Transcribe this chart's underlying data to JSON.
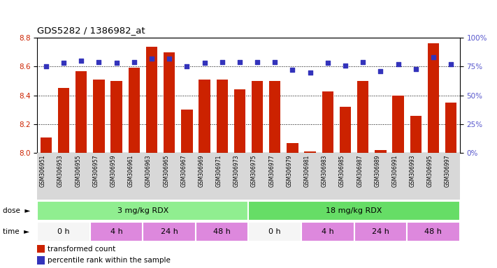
{
  "title": "GDS5282 / 1386982_at",
  "samples": [
    "GSM306951",
    "GSM306953",
    "GSM306955",
    "GSM306957",
    "GSM306959",
    "GSM306961",
    "GSM306963",
    "GSM306965",
    "GSM306967",
    "GSM306969",
    "GSM306971",
    "GSM306973",
    "GSM306975",
    "GSM306977",
    "GSM306979",
    "GSM306981",
    "GSM306983",
    "GSM306985",
    "GSM306987",
    "GSM306989",
    "GSM306991",
    "GSM306993",
    "GSM306995",
    "GSM306997"
  ],
  "bar_values": [
    8.11,
    8.45,
    8.57,
    8.51,
    8.5,
    8.59,
    8.74,
    8.7,
    8.3,
    8.51,
    8.51,
    8.44,
    8.5,
    8.5,
    8.07,
    8.01,
    8.43,
    8.32,
    8.5,
    8.02,
    8.4,
    8.26,
    8.76,
    8.35
  ],
  "percentile_values": [
    75,
    78,
    80,
    79,
    78,
    79,
    82,
    82,
    75,
    78,
    79,
    79,
    79,
    79,
    72,
    70,
    78,
    76,
    79,
    71,
    77,
    73,
    83,
    77
  ],
  "ylim_left": [
    8.0,
    8.8
  ],
  "ylim_right": [
    0,
    100
  ],
  "yticks_left": [
    8.0,
    8.2,
    8.4,
    8.6,
    8.8
  ],
  "yticks_right": [
    0,
    25,
    50,
    75,
    100
  ],
  "bar_color": "#cc2200",
  "dot_color": "#3333bb",
  "dose_groups": [
    {
      "label": "3 mg/kg RDX",
      "start": 0,
      "end": 12,
      "color": "#90ee90"
    },
    {
      "label": "18 mg/kg RDX",
      "start": 12,
      "end": 24,
      "color": "#66dd66"
    }
  ],
  "time_group_colors": [
    "#f5f5f5",
    "#dd88dd",
    "#dd88dd",
    "#dd88dd",
    "#f5f5f5",
    "#dd88dd",
    "#dd88dd",
    "#dd88dd"
  ],
  "time_groups": [
    {
      "label": "0 h",
      "start": 0,
      "end": 3
    },
    {
      "label": "4 h",
      "start": 3,
      "end": 6
    },
    {
      "label": "24 h",
      "start": 6,
      "end": 9
    },
    {
      "label": "48 h",
      "start": 9,
      "end": 12
    },
    {
      "label": "0 h",
      "start": 12,
      "end": 15
    },
    {
      "label": "4 h",
      "start": 15,
      "end": 18
    },
    {
      "label": "24 h",
      "start": 18,
      "end": 21
    },
    {
      "label": "48 h",
      "start": 21,
      "end": 24
    }
  ],
  "legend_bar_label": "transformed count",
  "legend_dot_label": "percentile rank within the sample"
}
